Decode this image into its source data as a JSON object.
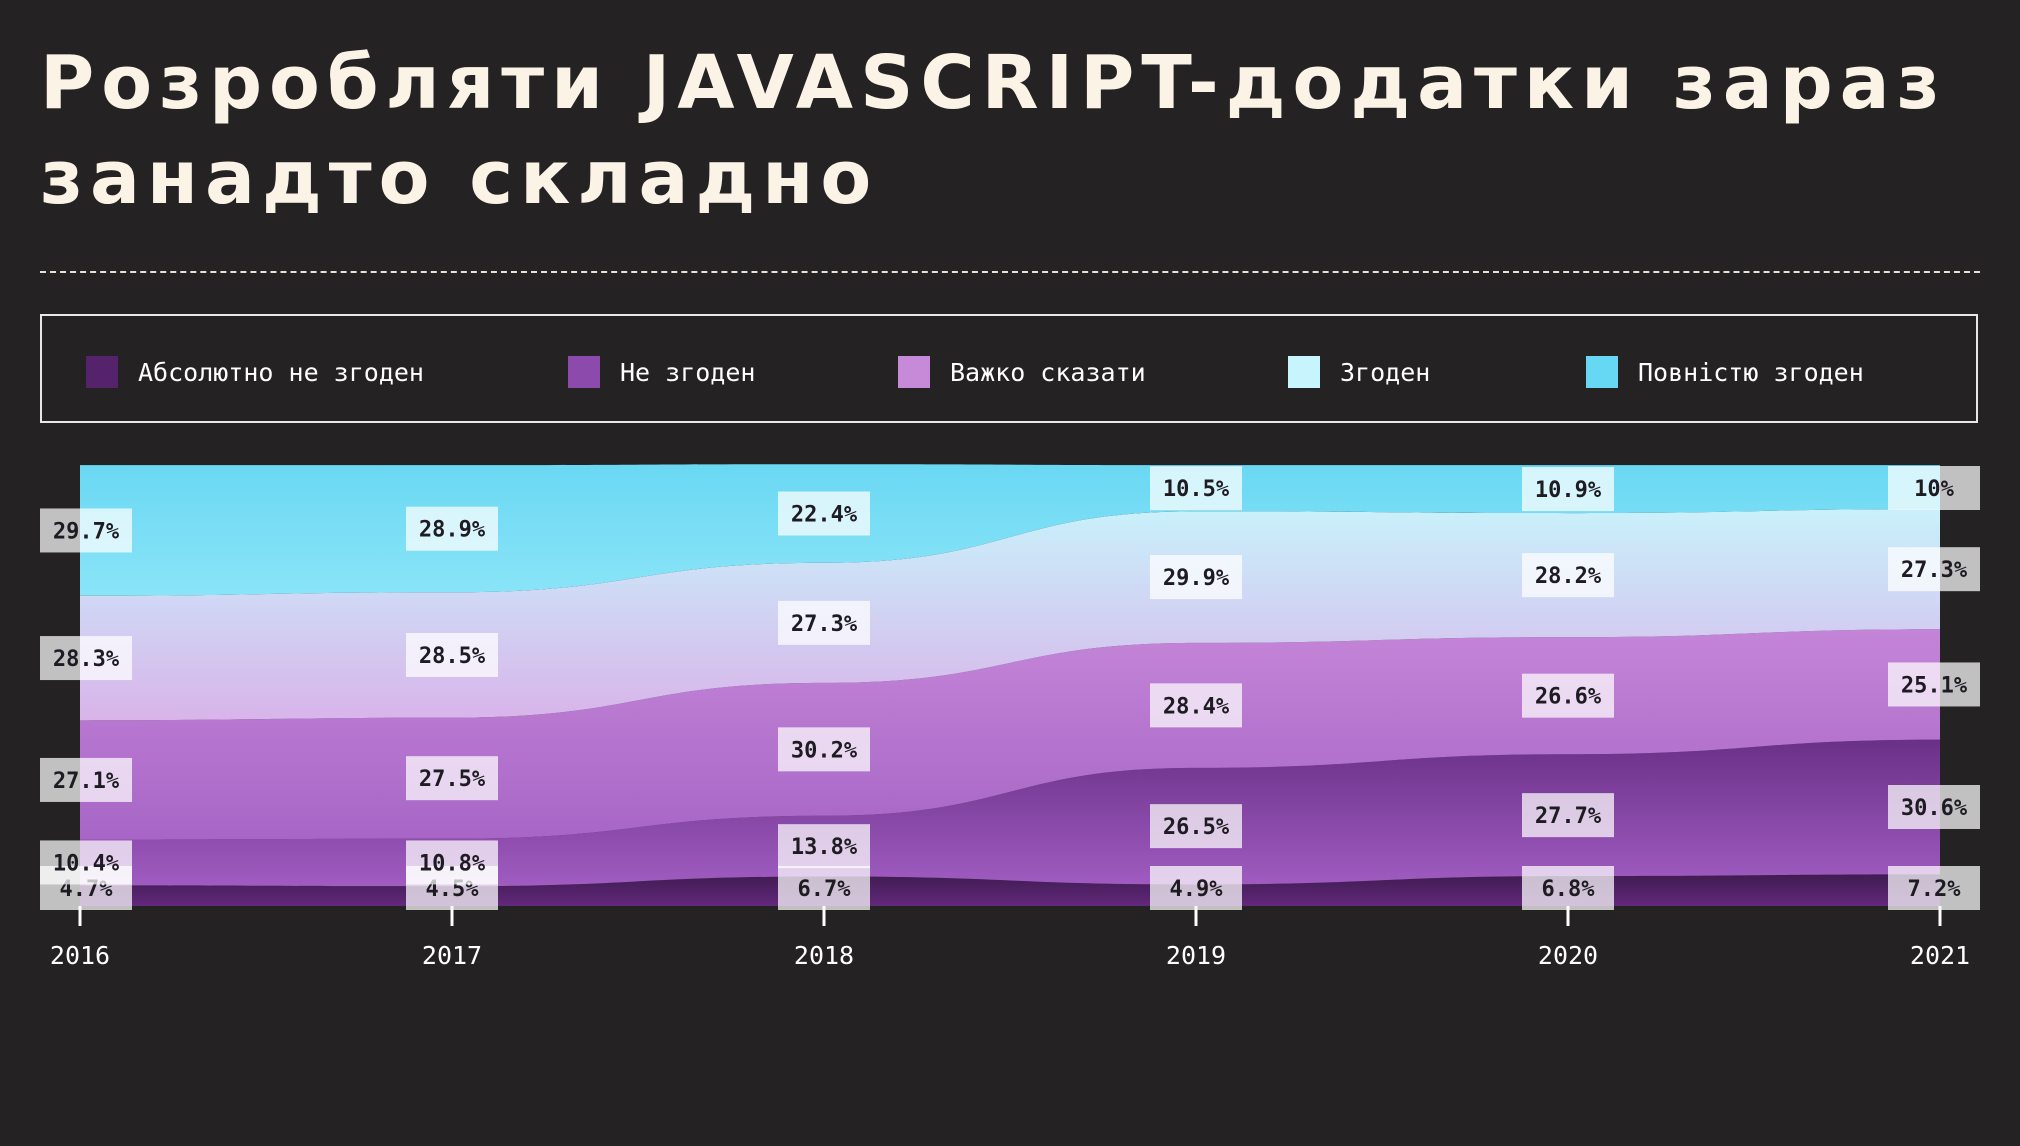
{
  "title": "Розробляти JAVASCRIPT-додатки зараз занадто складно",
  "legend": [
    {
      "label": "Абсолютно не згоден",
      "color": "#55236b"
    },
    {
      "label": "Не згоден",
      "color": "#8c4aad"
    },
    {
      "label": "Важко сказати",
      "color": "#c68ad9"
    },
    {
      "label": "Згоден",
      "color": "#c8f4fd"
    },
    {
      "label": "Повністю згоден",
      "color": "#66d8f4"
    }
  ],
  "chart_data": {
    "type": "area",
    "stacked": true,
    "x": [
      "2016",
      "2017",
      "2018",
      "2019",
      "2020",
      "2021"
    ],
    "ylim": [
      0,
      100
    ],
    "grid": false,
    "legend_position": "top",
    "series": [
      {
        "name": "Абсолютно не згоден",
        "values": [
          4.7,
          4.5,
          6.7,
          4.9,
          6.8,
          7.2
        ],
        "labels": [
          "4.7%",
          "4.5%",
          "6.7%",
          "4.9%",
          "6.8%",
          "7.2%"
        ]
      },
      {
        "name": "Не згоден",
        "values": [
          10.4,
          10.8,
          13.8,
          26.5,
          27.7,
          30.6
        ],
        "labels": [
          "10.4%",
          "10.8%",
          "13.8%",
          "26.5%",
          "27.7%",
          "30.6%"
        ]
      },
      {
        "name": "Важко сказати",
        "values": [
          27.1,
          27.5,
          30.2,
          28.4,
          26.6,
          25.1
        ],
        "labels": [
          "27.1%",
          "27.5%",
          "30.2%",
          "28.4%",
          "26.6%",
          "25.1%"
        ]
      },
      {
        "name": "Згоден",
        "values": [
          28.3,
          28.5,
          27.3,
          29.9,
          28.2,
          27.3
        ],
        "labels": [
          "28.3%",
          "28.5%",
          "27.3%",
          "29.9%",
          "28.2%",
          "27.3%"
        ]
      },
      {
        "name": "Повністю згоден",
        "values": [
          29.7,
          28.9,
          22.4,
          10.5,
          10.9,
          10
        ],
        "labels": [
          "29.7%",
          "28.9%",
          "22.4%",
          "10.5%",
          "10.9%",
          "10%"
        ]
      }
    ]
  }
}
